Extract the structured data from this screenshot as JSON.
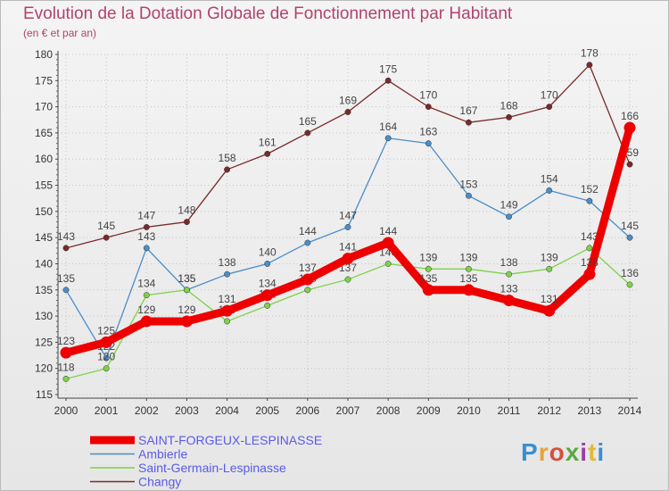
{
  "header": {
    "title": "Evolution de la Dotation Globale de Fonctionnement par Habitant",
    "subtitle": "(en € et par an)"
  },
  "logo": {
    "text": "Proxiti"
  },
  "chart_data": {
    "type": "line",
    "x": [
      "2000",
      "2001",
      "2002",
      "2003",
      "2004",
      "2005",
      "2006",
      "2007",
      "2008",
      "2009",
      "2010",
      "2011",
      "2012",
      "2013",
      "2014"
    ],
    "ylim": [
      115,
      180
    ],
    "yticks": [
      115,
      120,
      125,
      130,
      135,
      140,
      145,
      150,
      155,
      160,
      165,
      170,
      175,
      180
    ],
    "grid": true,
    "legend_placement": "bottom-left",
    "series": [
      {
        "name": "Changy",
        "color": "#7a2a2a",
        "values": [
          143,
          145,
          147,
          148,
          158,
          161,
          165,
          169,
          175,
          170,
          167,
          168,
          170,
          178,
          159
        ]
      },
      {
        "name": "Ambierle",
        "color": "#4a8ec8",
        "values": [
          135,
          122,
          143,
          135,
          138,
          140,
          144,
          147,
          164,
          163,
          153,
          149,
          154,
          152,
          145
        ]
      },
      {
        "name": "Saint-Germain-Lespinasse",
        "color": "#7fd14a",
        "values": [
          118,
          120,
          134,
          135,
          129,
          132,
          135,
          137,
          140,
          139,
          139,
          138,
          139,
          143,
          136
        ]
      },
      {
        "name": "SAINT-FORGEUX-LESPINASSE",
        "color": "#ee0000",
        "values": [
          123,
          125,
          129,
          129,
          131,
          134,
          137,
          141,
          144,
          135,
          135,
          133,
          131,
          138,
          166
        ]
      }
    ]
  }
}
